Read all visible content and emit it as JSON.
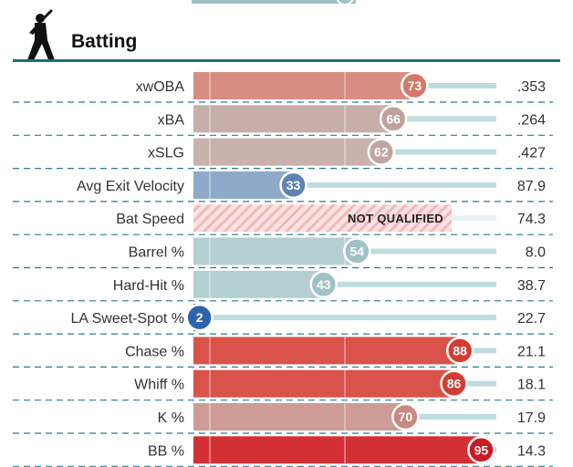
{
  "section": {
    "title": "Batting",
    "icon": "batter-silhouette-icon"
  },
  "chart_data": {
    "type": "bar",
    "orientation": "horizontal",
    "xlim": [
      0,
      100
    ],
    "categories": [
      "xwOBA",
      "xBA",
      "xSLG",
      "Avg Exit Velocity",
      "Bat Speed",
      "Barrel %",
      "Hard-Hit %",
      "LA Sweet-Spot %",
      "Chase %",
      "Whiff %",
      "K %",
      "BB %"
    ],
    "series": [
      {
        "values": [
          73,
          66,
          62,
          33,
          null,
          54,
          43,
          2,
          88,
          86,
          70,
          95
        ],
        "bar_labels": [
          "73",
          "66",
          "62",
          "33",
          "NOT QUALIFIED",
          "54",
          "43",
          "2",
          "88",
          "86",
          "70",
          "95"
        ]
      }
    ],
    "stat_values": [
      ".353",
      ".264",
      ".427",
      "87.9",
      "74.3",
      "8.0",
      "38.7",
      "22.7",
      "21.1",
      "18.1",
      "17.9",
      "14.3"
    ],
    "colors": [
      "#d88d82",
      "#c8aea9",
      "#c9b1ad",
      "#8eaac8",
      "#f2b8b8",
      "#b4cfd2",
      "#b4cfd2",
      "#2f63ad",
      "#d9534a",
      "#d9534a",
      "#cd9c96",
      "#d33035"
    ],
    "badge_colors": [
      "#d6776c",
      "#c0a29c",
      "#c0a6a2",
      "#5f83b2",
      "#f2b8b8",
      "#9fc2c6",
      "#9fc2c6",
      "#2f63ad",
      "#d43c33",
      "#d43c33",
      "#c68a82",
      "#cc1a24"
    ],
    "track_color": "#bfdce1",
    "divider_color": "#2a7b8c"
  }
}
